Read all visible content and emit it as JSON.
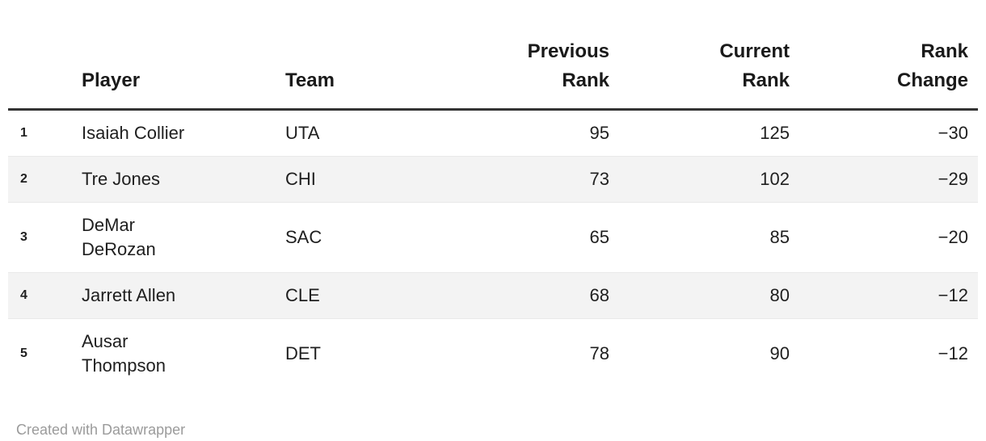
{
  "chart_data": {
    "type": "table",
    "columns": [
      "",
      "Player",
      "Team",
      "Previous Rank",
      "Current Rank",
      "Rank Change"
    ],
    "rows": [
      [
        "1",
        "Isaiah Collier",
        "UTA",
        95,
        125,
        -30
      ],
      [
        "2",
        "Tre Jones",
        "CHI",
        73,
        102,
        -29
      ],
      [
        "3",
        "DeMar DeRozan",
        "SAC",
        65,
        85,
        -20
      ],
      [
        "4",
        "Jarrett Allen",
        "CLE",
        68,
        80,
        -12
      ],
      [
        "5",
        "Ausar Thompson",
        "DET",
        78,
        90,
        -12
      ]
    ],
    "layout_hints": "zebra striping on even rows, numeric columns right-aligned, thick rule under header",
    "attribution": "Created with Datawrapper"
  },
  "table": {
    "headers": {
      "num": "",
      "player": "Player",
      "team": "Team",
      "prev": "Previous\nRank",
      "curr": "Current\nRank",
      "change": "Rank\nChange"
    },
    "rows": [
      {
        "num": "1",
        "player": "Isaiah Collier",
        "team": "UTA",
        "prev": "95",
        "curr": "125",
        "change": "−30"
      },
      {
        "num": "2",
        "player": "Tre Jones",
        "team": "CHI",
        "prev": "73",
        "curr": "102",
        "change": "−29"
      },
      {
        "num": "3",
        "player": "DeMar\nDeRozan",
        "team": "SAC",
        "prev": "65",
        "curr": "85",
        "change": "−20"
      },
      {
        "num": "4",
        "player": "Jarrett Allen",
        "team": "CLE",
        "prev": "68",
        "curr": "80",
        "change": "−12"
      },
      {
        "num": "5",
        "player": "Ausar\nThompson",
        "team": "DET",
        "prev": "78",
        "curr": "90",
        "change": "−12"
      }
    ]
  },
  "footer": {
    "attribution": "Created with Datawrapper"
  },
  "colors": {
    "text": "#1f1f1f",
    "zebra_row": "#f3f3f3",
    "header_rule": "#333333",
    "row_divider": "#e9e9e9",
    "attribution_text": "#9b9b9b"
  }
}
